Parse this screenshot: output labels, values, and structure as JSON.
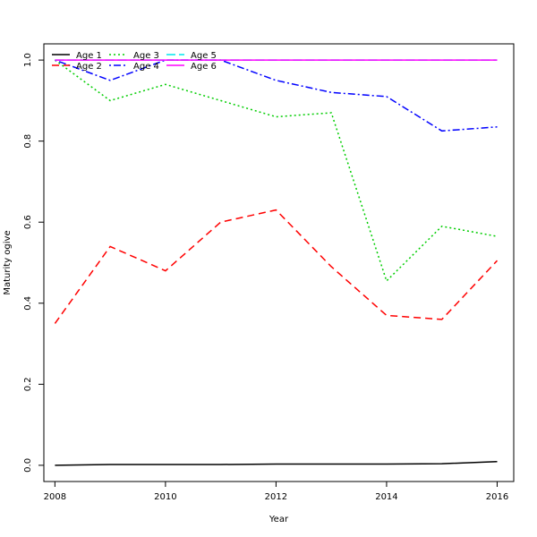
{
  "chart_data": {
    "type": "line",
    "title": "",
    "xlabel": "Year",
    "ylabel": "Maturity ogive",
    "xlim": [
      2007.8,
      2016.3
    ],
    "ylim": [
      -0.04,
      1.04
    ],
    "x_ticks": [
      2008,
      2010,
      2012,
      2014,
      2016
    ],
    "y_ticks": [
      0.0,
      0.2,
      0.4,
      0.6,
      0.8,
      1.0
    ],
    "x": [
      2008,
      2009,
      2010,
      2011,
      2012,
      2013,
      2014,
      2015,
      2016
    ],
    "grid": false,
    "legend_position": "top-left",
    "series": [
      {
        "name": "Age 1",
        "color": "#000000",
        "dash": "solid",
        "values": [
          0.0,
          0.002,
          0.002,
          0.002,
          0.003,
          0.003,
          0.003,
          0.004,
          0.009
        ]
      },
      {
        "name": "Age 2",
        "color": "#ff0000",
        "dash": "dashed",
        "values": [
          0.35,
          0.54,
          0.48,
          0.6,
          0.63,
          0.49,
          0.37,
          0.36,
          0.505
        ]
      },
      {
        "name": "Age 3",
        "color": "#00cd00",
        "dash": "dotted",
        "values": [
          1.0,
          0.9,
          0.94,
          0.9,
          0.86,
          0.87,
          0.455,
          0.59,
          0.565
        ]
      },
      {
        "name": "Age 4",
        "color": "#0000ff",
        "dash": "dotdash",
        "values": [
          1.0,
          0.95,
          1.0,
          1.0,
          0.95,
          0.92,
          0.91,
          0.825,
          0.835
        ]
      },
      {
        "name": "Age 5",
        "color": "#00e5ee",
        "dash": "longdash",
        "values": [
          1.0,
          1.0,
          1.0,
          1.0,
          1.0,
          1.0,
          1.0,
          1.0,
          1.0
        ]
      },
      {
        "name": "Age 6",
        "color": "#ff00ff",
        "dash": "solid",
        "values": [
          1.0,
          1.0,
          1.0,
          1.0,
          1.0,
          1.0,
          1.0,
          1.0,
          1.0
        ]
      }
    ]
  }
}
